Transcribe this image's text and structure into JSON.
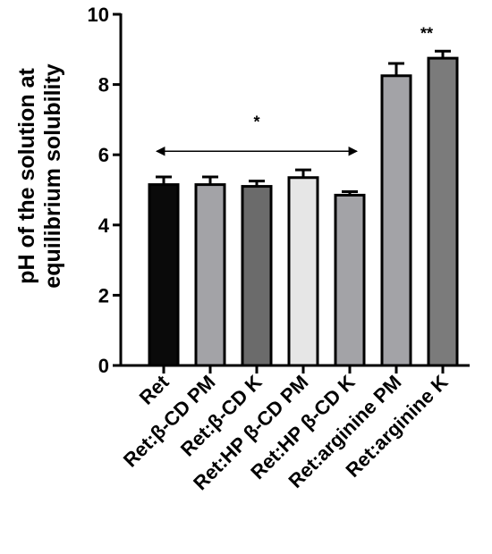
{
  "chart_data": {
    "type": "bar",
    "ylabel_line1": "pH of the solution at",
    "ylabel_line2": "equilibrium solubility",
    "xlabel": "",
    "ylim": [
      0,
      10
    ],
    "yticks": [
      0,
      2,
      4,
      6,
      8,
      10
    ],
    "categories": [
      "Ret",
      "Ret:β-CD PM",
      "Ret:β-CD K",
      "Ret:HP β-CD PM",
      "Ret:HP β-CD K",
      "Ret:arginine PM",
      "Ret:arginine K"
    ],
    "values": [
      5.15,
      5.15,
      5.1,
      5.35,
      4.85,
      8.25,
      8.75
    ],
    "errors": [
      0.22,
      0.22,
      0.15,
      0.22,
      0.1,
      0.35,
      0.2
    ],
    "bar_colors": [
      "#0a0a0a",
      "#a3a3a7",
      "#6b6b6b",
      "#e6e6e6",
      "#a3a3a7",
      "#a3a3a7",
      "#7b7b7b"
    ],
    "annotations": [
      {
        "text": "*",
        "type": "double-arrow",
        "from_category": 0,
        "to_category": 4,
        "y": 6.1
      },
      {
        "text": "**",
        "type": "label",
        "category": 6,
        "y": 9.5
      }
    ],
    "grid": false,
    "legend": "none"
  }
}
